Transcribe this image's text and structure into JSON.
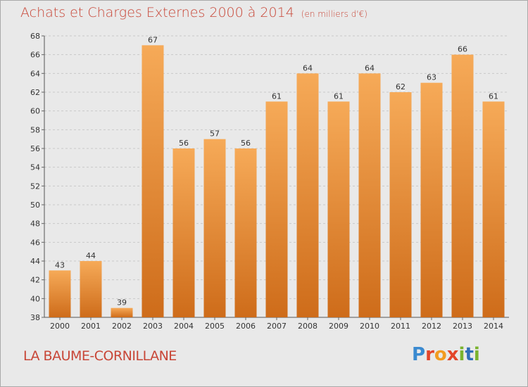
{
  "title": "Achats et Charges Externes 2000 à 2014",
  "unit": "(en milliers d'€)",
  "location": "LA BAUME-CORNILLANE",
  "logo": {
    "text": "Proxiti",
    "letters": [
      "P",
      "r",
      "o",
      "x",
      "i",
      "t",
      "i"
    ]
  },
  "colors": {
    "bar_light": "#f6aa58",
    "bar_dark": "#ce6c1a",
    "title": "#c84637",
    "background": "#e9e9e9"
  },
  "chart_data": {
    "type": "bar",
    "categories": [
      "2000",
      "2001",
      "2002",
      "2003",
      "2004",
      "2005",
      "2006",
      "2007",
      "2008",
      "2009",
      "2010",
      "2011",
      "2012",
      "2013",
      "2014"
    ],
    "values": [
      43,
      44,
      39,
      67,
      56,
      57,
      56,
      61,
      64,
      61,
      64,
      62,
      63,
      66,
      61
    ],
    "ylim": [
      38,
      68
    ],
    "yticks": [
      38,
      40,
      42,
      44,
      46,
      48,
      50,
      52,
      54,
      56,
      58,
      60,
      62,
      64,
      66,
      68
    ],
    "grid": true
  }
}
